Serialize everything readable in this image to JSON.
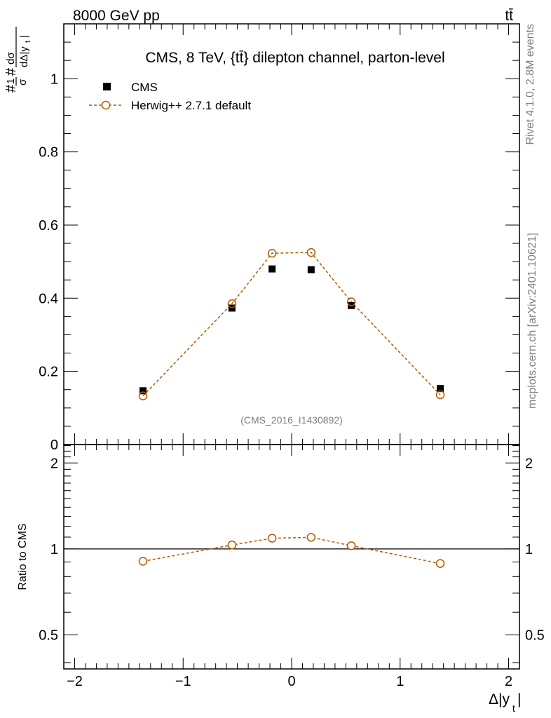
{
  "header": {
    "left": "8000 GeV pp",
    "right": "tt̄"
  },
  "side_text": {
    "rivet": "Rivet 4.1.0,  2.8M events",
    "mcplots": "mcplots.cern.ch [arXiv:2401.10621]"
  },
  "chart_data": [
    {
      "type": "scatter",
      "panel": "main",
      "title": "CMS, 8 TeV, {tt̄} dilepton channel, parton-level",
      "watermark": "(CMS_2016_I1430892)",
      "ylabel": "#frac{1}{σ}#frac{dσ}{dΔ|y_t|}",
      "xlim": [
        -2.1,
        2.1
      ],
      "ylim": [
        0,
        1.15
      ],
      "y_ticks": [
        0,
        0.2,
        0.4,
        0.6,
        0.8,
        1
      ],
      "y_tick_labels": [
        "0",
        "0.2",
        "0.4",
        "0.6",
        "0.8",
        "1"
      ],
      "legend_position": "top-left",
      "series": [
        {
          "name": "CMS",
          "style": "black-filled-square",
          "x": [
            -1.37,
            -0.55,
            -0.18,
            0.18,
            0.55,
            1.37
          ],
          "values": [
            0.147,
            0.373,
            0.48,
            0.478,
            0.38,
            0.153
          ]
        },
        {
          "name": "Herwig++ 2.7.1 default",
          "style": "orange-open-circle-dashed",
          "color": "#b35a00",
          "x": [
            -1.37,
            -0.55,
            -0.18,
            0.18,
            0.55,
            1.37
          ],
          "values": [
            0.133,
            0.385,
            0.523,
            0.525,
            0.39,
            0.136
          ]
        }
      ]
    },
    {
      "type": "line",
      "panel": "ratio",
      "ylabel": "Ratio to CMS",
      "xlabel": "Δ|y_t|",
      "xlim": [
        -2.1,
        2.1
      ],
      "ylim": [
        0.38,
        2.32
      ],
      "log_y": true,
      "x_ticks": [
        -2,
        -1,
        0,
        1,
        2
      ],
      "x_tick_labels": [
        "−2",
        "−1",
        "0",
        "1",
        "2"
      ],
      "y_ticks": [
        0.5,
        1,
        2
      ],
      "y_tick_labels": [
        "0.5",
        "1",
        "2"
      ],
      "reference_line": 1,
      "series": [
        {
          "name": "Herwig++ 2.7.1 default",
          "color": "#b35a00",
          "x": [
            -1.37,
            -0.55,
            -0.18,
            0.18,
            0.55,
            1.37
          ],
          "values": [
            0.905,
            1.032,
            1.09,
            1.098,
            1.026,
            0.889
          ]
        }
      ]
    }
  ]
}
